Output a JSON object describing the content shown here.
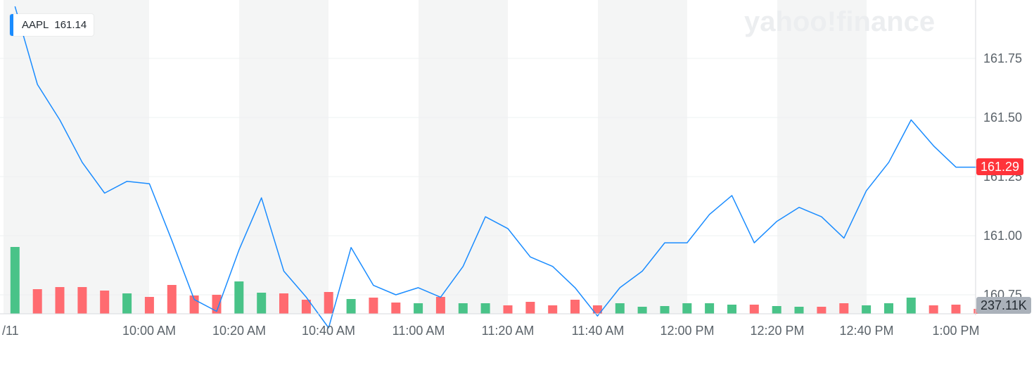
{
  "watermark": "yahoo!finance",
  "legend": {
    "symbol": "AAPL",
    "value": "161.14",
    "color": "#1a8cff"
  },
  "badges": {
    "last_price": "161.29",
    "last_volume": "237.11K"
  },
  "colors": {
    "line": "#1a8cff",
    "up": "#49c388",
    "down": "#ff6b70",
    "band": "#f4f5f5",
    "grid": "#eef0f1"
  },
  "chart_data": {
    "type": "line",
    "title": "",
    "xlabel": "",
    "ylabel": "",
    "x_tick_labels": [
      "/11",
      "10:00 AM",
      "10:20 AM",
      "10:40 AM",
      "11:00 AM",
      "11:20 AM",
      "11:40 AM",
      "12:00 PM",
      "12:20 PM",
      "12:40 PM",
      "1:00 PM"
    ],
    "y_tick_labels": [
      "160.75",
      "161.00",
      "161.25",
      "161.50",
      "161.75"
    ],
    "ylim": [
      160.66,
      161.97
    ],
    "series": [
      {
        "x": [
          "9:30 AM",
          "9:35 AM",
          "9:40 AM",
          "9:45 AM",
          "9:50 AM",
          "9:55 AM",
          "10:00 AM",
          "10:05 AM",
          "10:10 AM",
          "10:15 AM",
          "10:20 AM",
          "10:25 AM",
          "10:30 AM",
          "10:35 AM",
          "10:40 AM",
          "10:45 AM",
          "10:50 AM",
          "10:55 AM",
          "11:00 AM",
          "11:05 AM",
          "11:10 AM",
          "11:15 AM",
          "11:20 AM",
          "11:25 AM",
          "11:30 AM",
          "11:35 AM",
          "11:40 AM",
          "11:45 AM",
          "11:50 AM",
          "11:55 AM",
          "12:00 PM",
          "12:05 PM",
          "12:10 PM",
          "12:15 PM",
          "12:20 PM",
          "12:25 PM",
          "12:30 PM",
          "12:35 PM",
          "12:40 PM",
          "12:45 PM",
          "12:50 PM",
          "12:55 PM",
          "1:00 PM",
          "1:05 PM"
        ],
        "values": [
          161.97,
          161.64,
          161.49,
          161.31,
          161.18,
          161.23,
          161.22,
          160.98,
          160.73,
          160.68,
          160.94,
          161.16,
          160.85,
          160.74,
          160.61,
          160.95,
          160.79,
          160.75,
          160.78,
          160.74,
          160.87,
          161.08,
          161.03,
          160.91,
          160.87,
          160.78,
          160.66,
          160.78,
          160.85,
          160.97,
          160.97,
          161.09,
          161.17,
          160.97,
          161.06,
          161.12,
          161.08,
          160.99,
          161.19,
          161.31,
          161.49,
          161.38,
          161.29,
          161.29
        ]
      }
    ],
    "volume": {
      "values": [
        95,
        35,
        38,
        38,
        33,
        29,
        24,
        41,
        26,
        27,
        46,
        30,
        29,
        20,
        31,
        21,
        23,
        16,
        15,
        24,
        15,
        15,
        12,
        17,
        12,
        20,
        12,
        15,
        10,
        11,
        15,
        15,
        13,
        13,
        11,
        10,
        10,
        15,
        12,
        15,
        23,
        12,
        13,
        7
      ],
      "up": [
        true,
        false,
        false,
        false,
        false,
        true,
        false,
        false,
        false,
        false,
        true,
        true,
        false,
        false,
        false,
        true,
        false,
        false,
        true,
        false,
        true,
        true,
        false,
        false,
        false,
        false,
        false,
        true,
        true,
        true,
        true,
        true,
        true,
        false,
        true,
        true,
        false,
        false,
        true,
        true,
        true,
        false,
        false,
        false
      ]
    }
  }
}
